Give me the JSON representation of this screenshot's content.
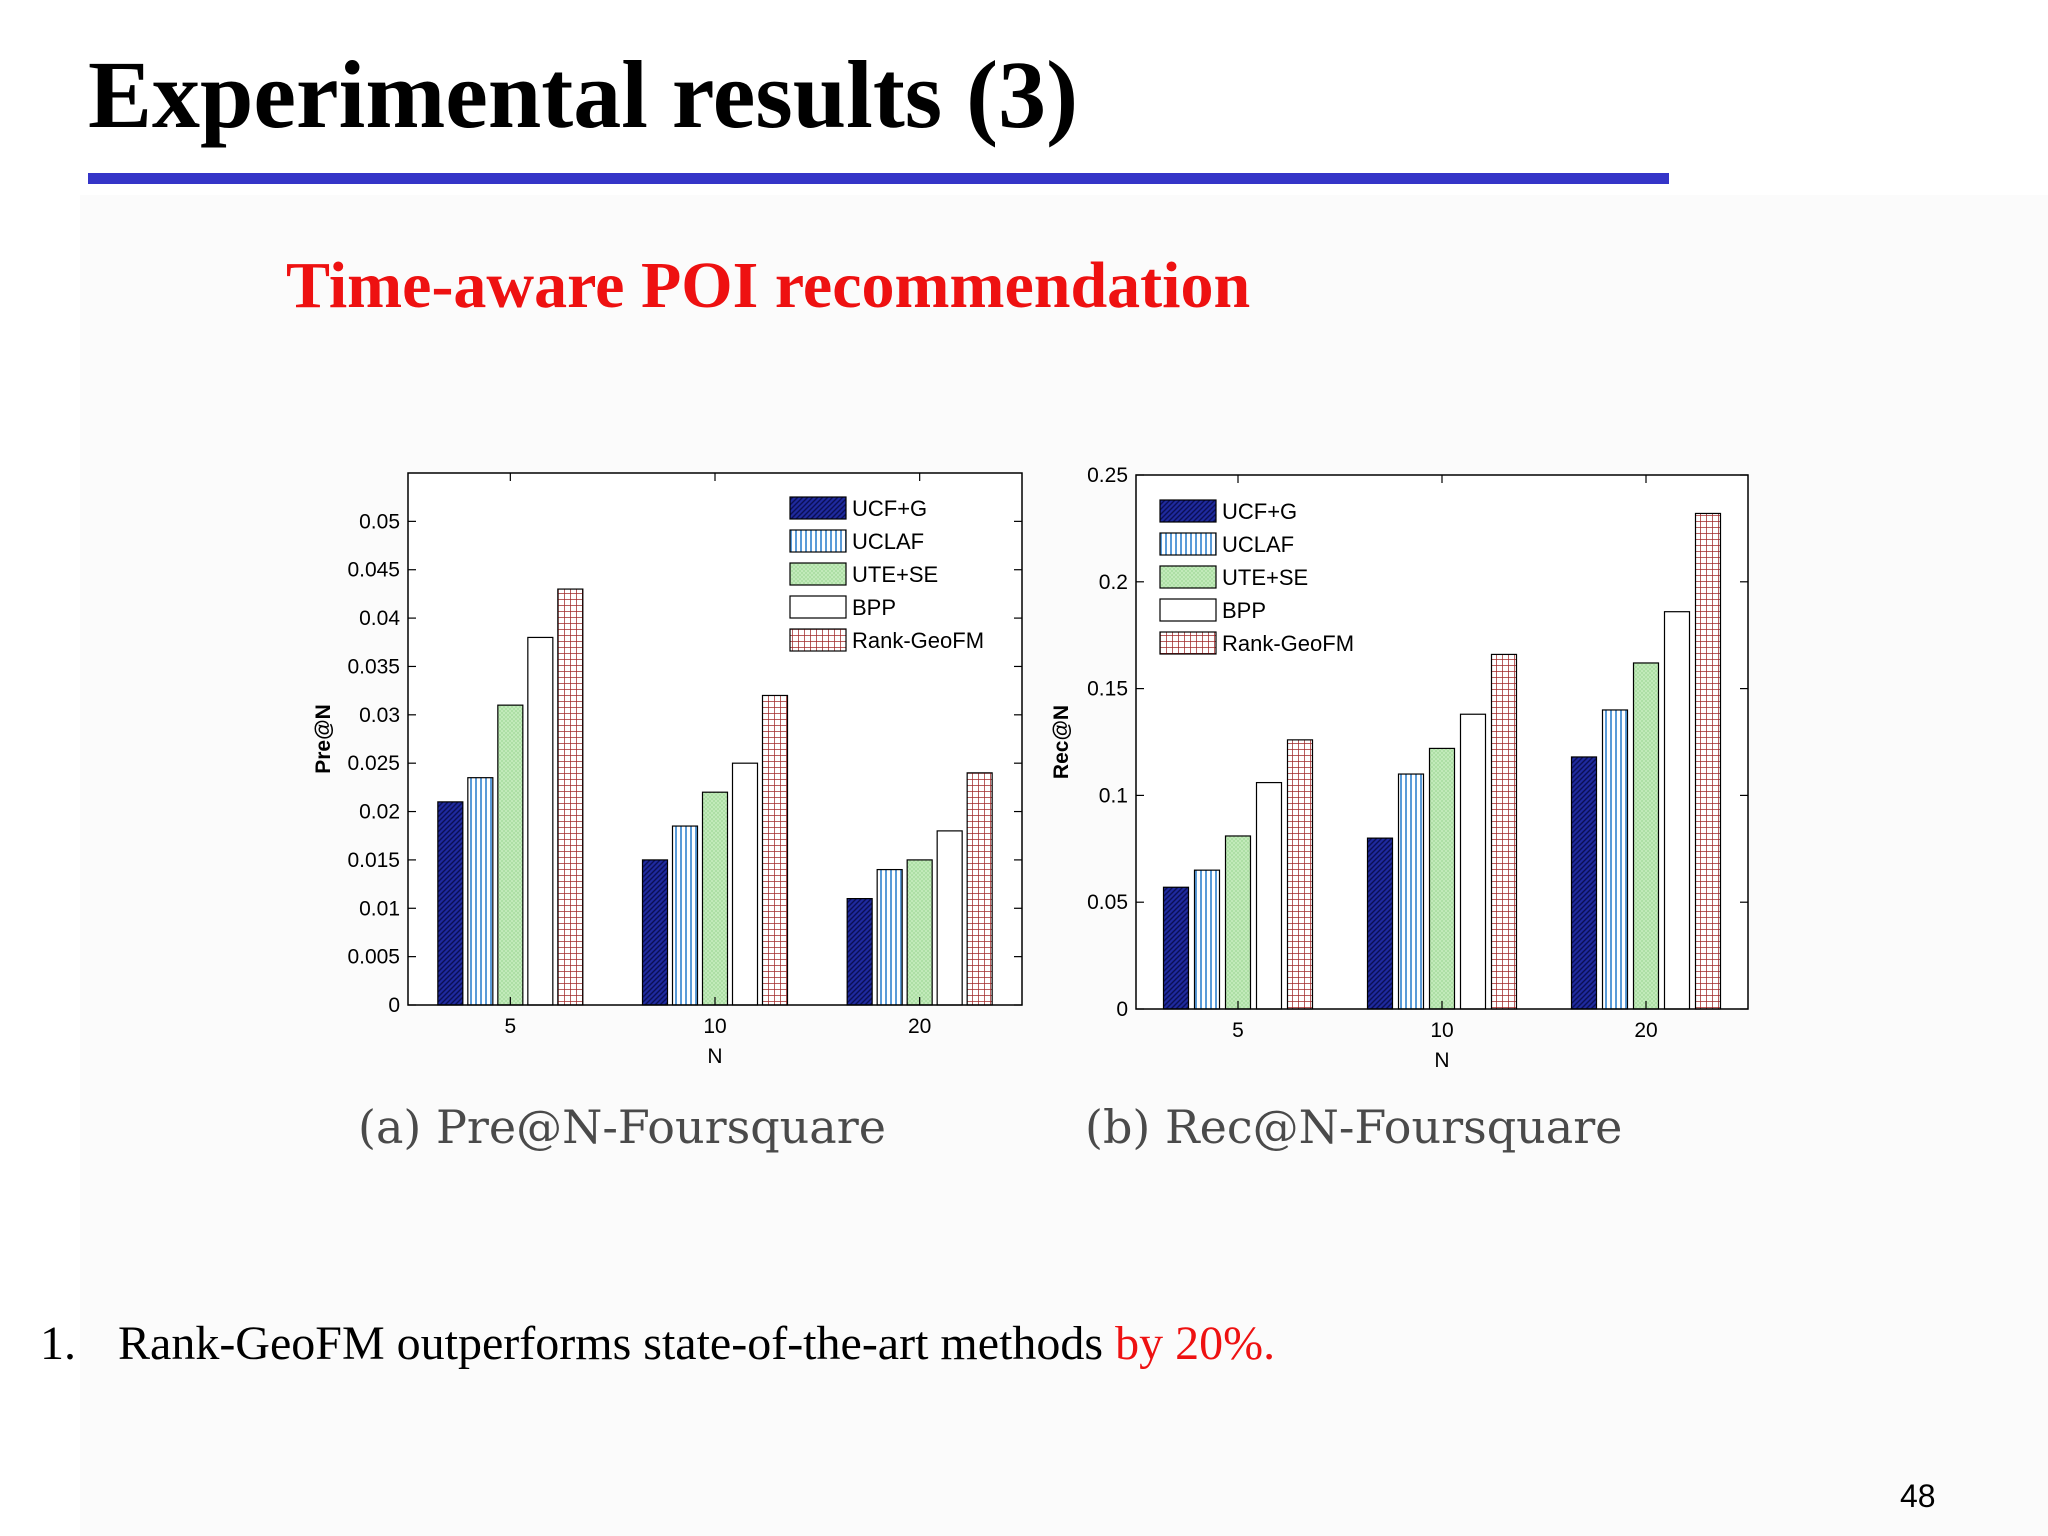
{
  "title": "Experimental results (3)",
  "subtitle": "Time-aware POI recommendation",
  "captions": {
    "a": "(a) Pre@N-Foursquare",
    "b": "(b) Rec@N-Foursquare"
  },
  "bullet": {
    "number": "1.",
    "text": "Rank-GeoFM outperforms state-of-the-art methods ",
    "highlight": "by 20%."
  },
  "page_number": "48",
  "colors": {
    "rule": "#3535c8",
    "subtitle": "#ee1111",
    "UCF+G": "#1f2a9e",
    "UCLAF": "#5a9bd8",
    "UTE+SE": "#c8eec0",
    "BPP": "#ffffff",
    "Rank-GeoFM": "#a02828"
  },
  "chart_data": [
    {
      "type": "bar",
      "categories": [
        "5",
        "10",
        "20"
      ],
      "xlabel": "N",
      "ylabel": "Pre@N",
      "ylim": [
        0,
        0.055
      ],
      "yticks": [
        "0",
        "0.005",
        "0.01",
        "0.015",
        "0.02",
        "0.025",
        "0.03",
        "0.035",
        "0.04",
        "0.045",
        "0.05"
      ],
      "legend_position": "top-right",
      "series": [
        {
          "name": "UCF+G",
          "values": [
            0.021,
            0.015,
            0.011
          ]
        },
        {
          "name": "UCLAF",
          "values": [
            0.0235,
            0.0185,
            0.014
          ]
        },
        {
          "name": "UTE+SE",
          "values": [
            0.031,
            0.022,
            0.015
          ]
        },
        {
          "name": "BPP",
          "values": [
            0.038,
            0.025,
            0.018
          ]
        },
        {
          "name": "Rank-GeoFM",
          "values": [
            0.043,
            0.032,
            0.024
          ]
        }
      ]
    },
    {
      "type": "bar",
      "categories": [
        "5",
        "10",
        "20"
      ],
      "xlabel": "N",
      "ylabel": "Rec@N",
      "ylim": [
        0,
        0.25
      ],
      "yticks": [
        "0",
        "0.05",
        "0.1",
        "0.15",
        "0.2",
        "0.25"
      ],
      "legend_position": "top-left",
      "series": [
        {
          "name": "UCF+G",
          "values": [
            0.057,
            0.08,
            0.118
          ]
        },
        {
          "name": "UCLAF",
          "values": [
            0.065,
            0.11,
            0.14
          ]
        },
        {
          "name": "UTE+SE",
          "values": [
            0.081,
            0.122,
            0.162
          ]
        },
        {
          "name": "BPP",
          "values": [
            0.106,
            0.138,
            0.186
          ]
        },
        {
          "name": "Rank-GeoFM",
          "values": [
            0.126,
            0.166,
            0.232
          ]
        }
      ]
    }
  ]
}
